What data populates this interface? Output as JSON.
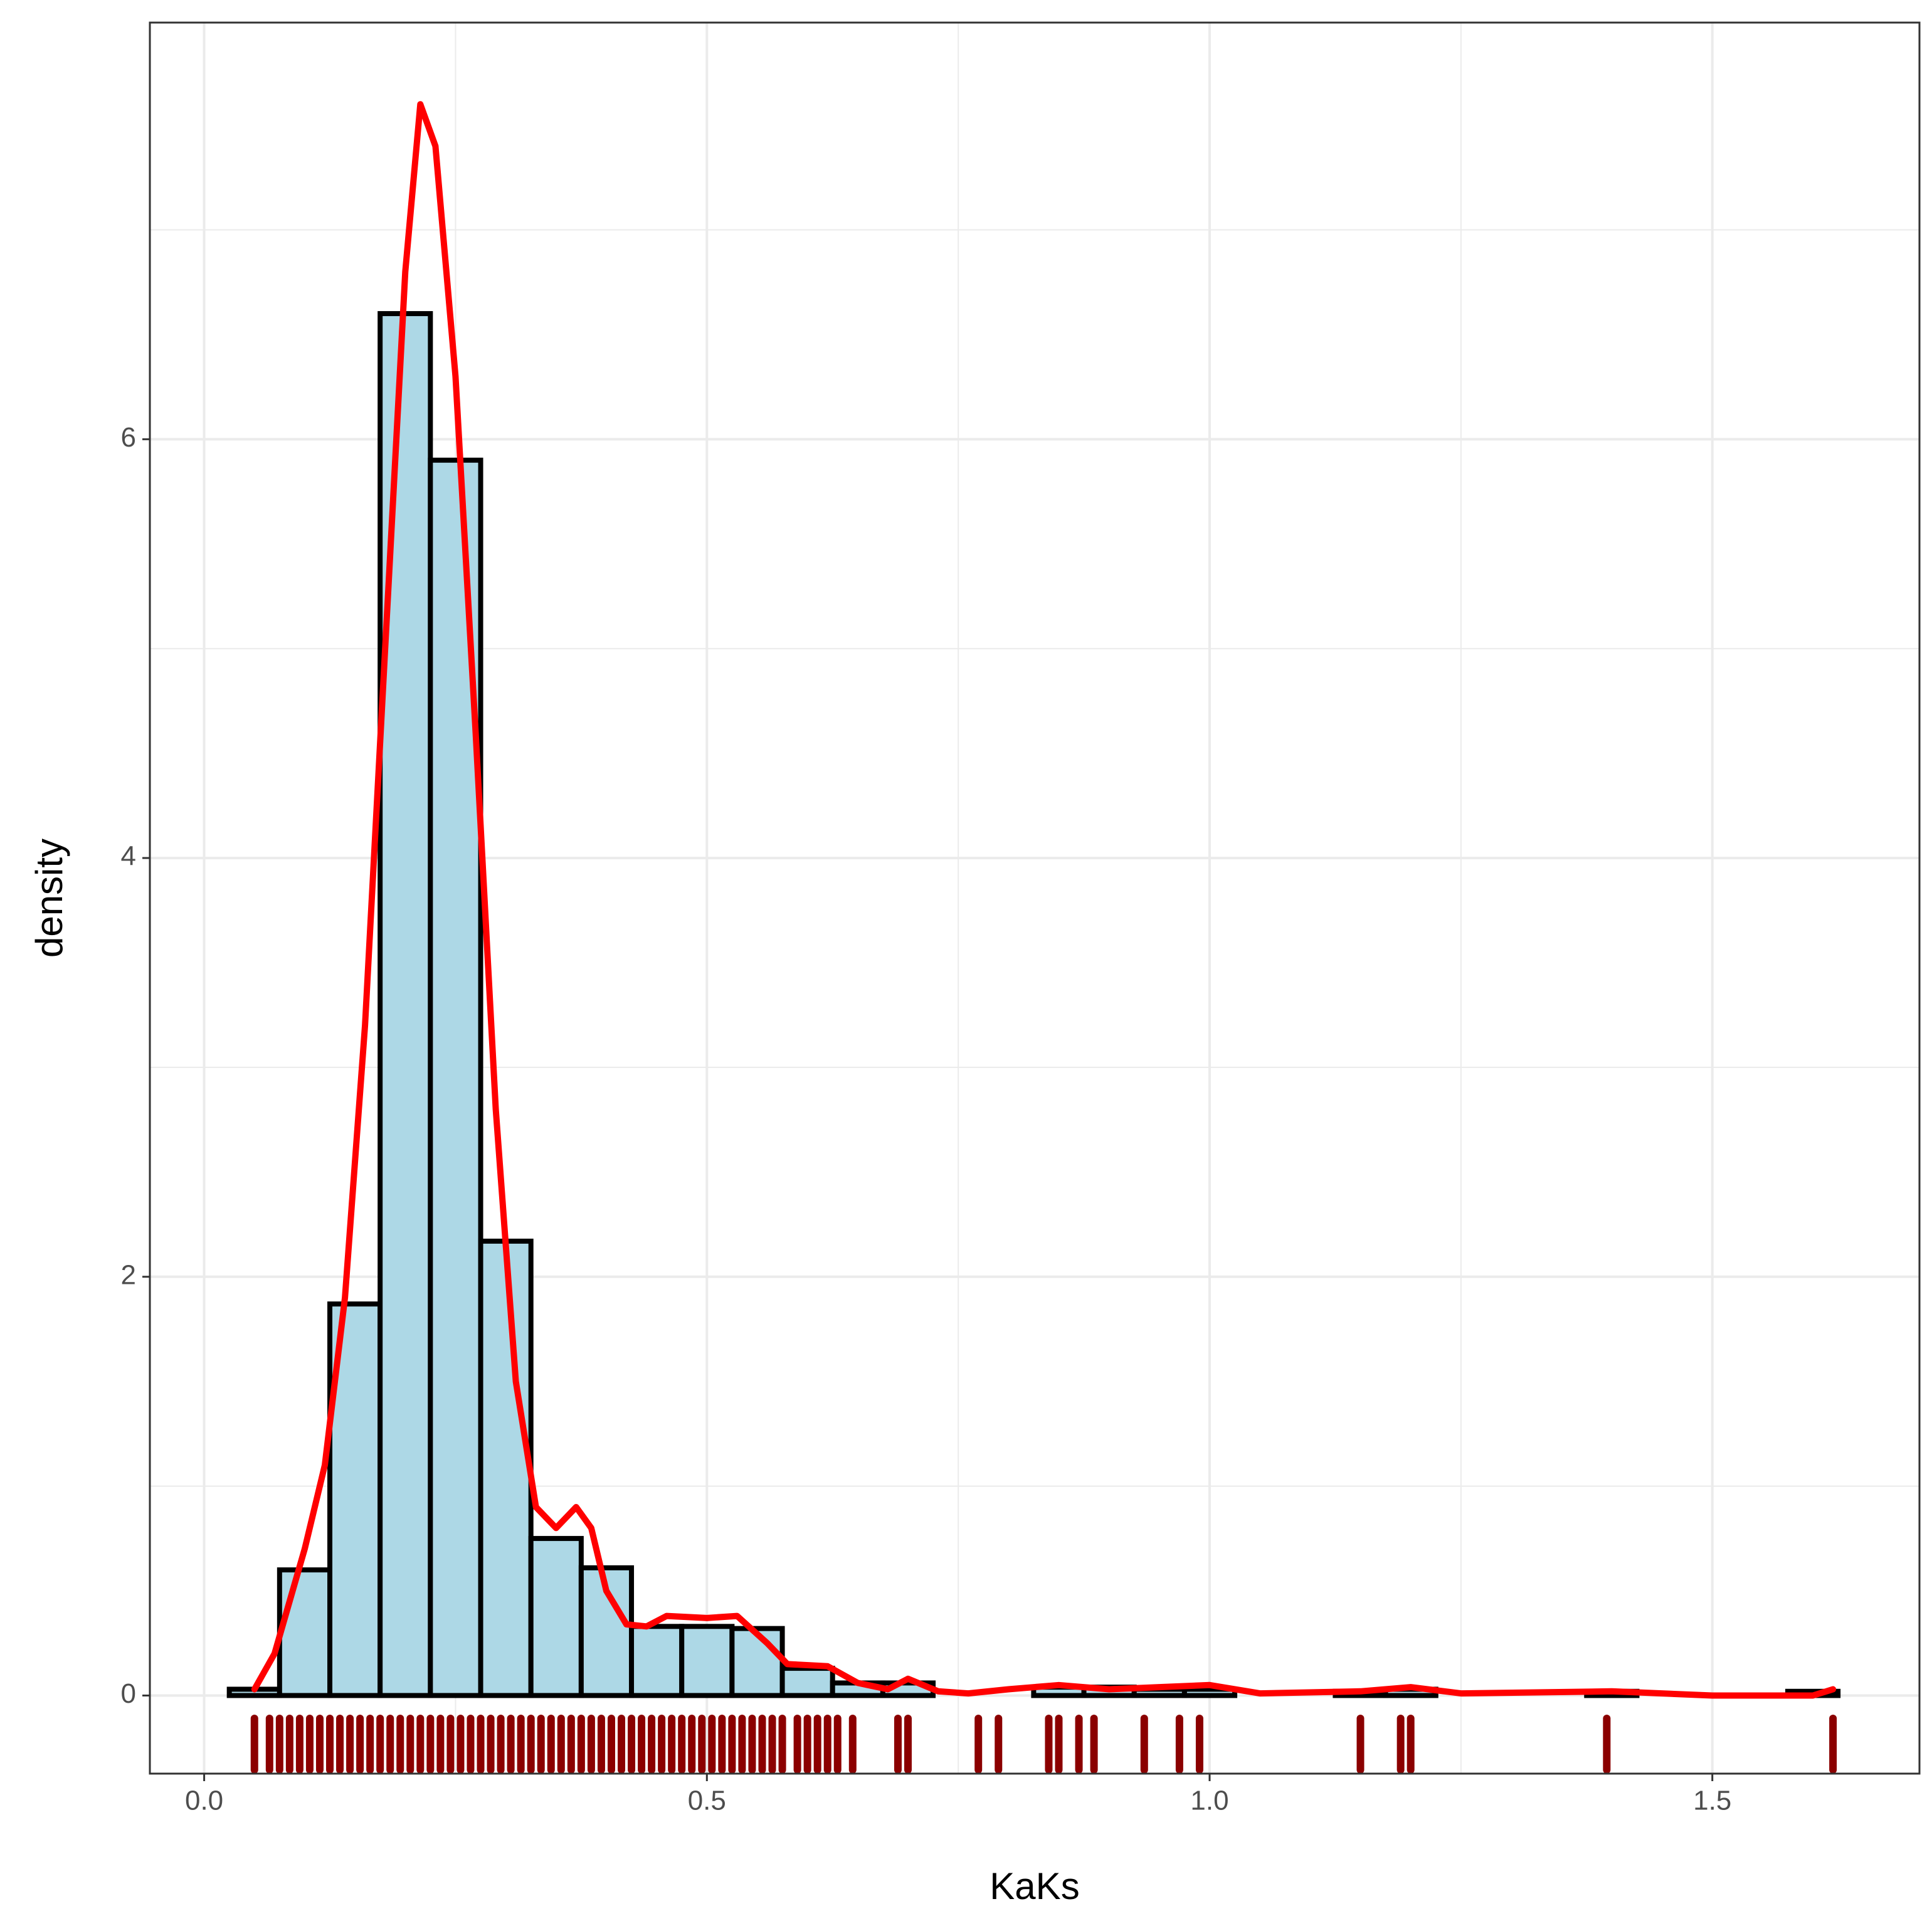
{
  "chart_data": {
    "type": "histogram",
    "x_label": "KaKs",
    "y_label": "density",
    "bins": [
      0.025,
      0.075,
      0.125,
      0.175,
      0.225,
      0.275,
      0.325,
      0.375,
      0.425,
      0.475,
      0.525,
      0.575,
      0.625,
      0.675,
      0.725,
      0.775,
      0.825,
      0.875,
      0.925,
      0.975,
      1.025,
      1.075,
      1.125,
      1.175,
      1.225,
      1.275,
      1.325,
      1.375,
      1.425,
      1.475,
      1.525,
      1.575,
      1.625
    ],
    "values": [
      0.03,
      0.6,
      1.87,
      6.6,
      5.9,
      2.17,
      0.75,
      0.61,
      0.33,
      0.33,
      0.32,
      0.13,
      0.06,
      0.06,
      0,
      0,
      0.04,
      0.04,
      0.03,
      0.03,
      0,
      0,
      0.02,
      0.03,
      0,
      0,
      0,
      0.02,
      0,
      0,
      0,
      0.02
    ],
    "color": "#add8e6",
    "edge_color": "#000000",
    "density": {
      "color": "#ff0000",
      "x": [
        0.05,
        0.07,
        0.1,
        0.12,
        0.14,
        0.16,
        0.18,
        0.2,
        0.215,
        0.23,
        0.25,
        0.27,
        0.29,
        0.31,
        0.33,
        0.35,
        0.37,
        0.385,
        0.4,
        0.42,
        0.44,
        0.46,
        0.5,
        0.53,
        0.56,
        0.58,
        0.62,
        0.65,
        0.68,
        0.7,
        0.73,
        0.76,
        0.8,
        0.85,
        0.9,
        0.95,
        1.0,
        1.05,
        1.15,
        1.2,
        1.25,
        1.4,
        1.5,
        1.6,
        1.62
      ],
      "y": [
        0.03,
        0.2,
        0.7,
        1.1,
        1.9,
        3.2,
        5.0,
        6.8,
        7.6,
        7.4,
        6.3,
        4.6,
        2.8,
        1.5,
        0.9,
        0.8,
        0.9,
        0.8,
        0.5,
        0.34,
        0.33,
        0.38,
        0.37,
        0.38,
        0.25,
        0.15,
        0.14,
        0.06,
        0.03,
        0.08,
        0.02,
        0.01,
        0.03,
        0.05,
        0.03,
        0.04,
        0.05,
        0.01,
        0.02,
        0.04,
        0.01,
        0.02,
        0,
        0,
        0.03
      ]
    },
    "rug": {
      "color": "#8b0000",
      "x": [
        0.05,
        0.065,
        0.075,
        0.085,
        0.095,
        0.105,
        0.115,
        0.125,
        0.135,
        0.145,
        0.155,
        0.165,
        0.175,
        0.185,
        0.195,
        0.205,
        0.215,
        0.225,
        0.235,
        0.245,
        0.255,
        0.265,
        0.275,
        0.285,
        0.295,
        0.305,
        0.315,
        0.325,
        0.335,
        0.345,
        0.355,
        0.365,
        0.375,
        0.385,
        0.395,
        0.405,
        0.415,
        0.425,
        0.435,
        0.445,
        0.455,
        0.465,
        0.475,
        0.485,
        0.495,
        0.505,
        0.515,
        0.525,
        0.535,
        0.545,
        0.555,
        0.565,
        0.575,
        0.59,
        0.6,
        0.61,
        0.62,
        0.63,
        0.645,
        0.69,
        0.7,
        0.77,
        0.79,
        0.84,
        0.85,
        0.87,
        0.885,
        0.935,
        0.97,
        0.99,
        1.15,
        1.19,
        1.2,
        1.395,
        1.62
      ]
    },
    "xlim": [
      -0.054,
      1.706
    ],
    "ylim": [
      -0.373,
      7.99
    ],
    "xticks": [
      {
        "value": 0,
        "label": "0.0"
      },
      0.5,
      {
        "value": 1,
        "label": "1.0"
      },
      1.5
    ],
    "yticks": [
      0,
      2,
      4,
      6
    ],
    "x_minor_grid": [
      0.25,
      0.75,
      1.25
    ],
    "y_minor_grid": [
      1,
      3,
      5,
      7
    ],
    "grid": true
  }
}
